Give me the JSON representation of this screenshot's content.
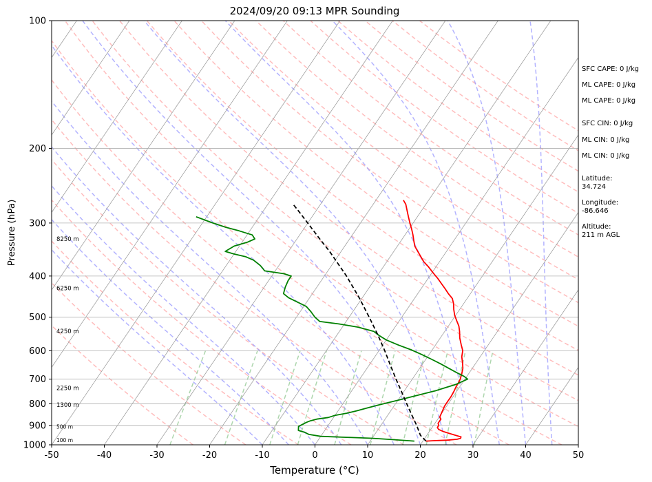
{
  "title": "2024/09/20 09:13 MPR Sounding",
  "chart_data": {
    "type": "line",
    "title": "2024/09/20 09:13 MPR Sounding",
    "xlabel": "Temperature (°C)",
    "ylabel": "Pressure (hPa)",
    "xlim": [
      -50,
      50
    ],
    "ylim": [
      1000,
      100
    ],
    "y_scale": "log",
    "grid": true,
    "x_ticks": [
      "-50",
      "-40",
      "-30",
      "-20",
      "-10",
      "0",
      "10",
      "20",
      "30",
      "40",
      "50"
    ],
    "y_ticks": [
      "100",
      "200",
      "300",
      "400",
      "500",
      "600",
      "700",
      "800",
      "900",
      "1000"
    ],
    "colors": {
      "temperature": "#ff0000",
      "dewpoint": "#008000",
      "parcel": "#000000",
      "isotherms": "#a0a0a0",
      "dry_adiabats": "#ff9999",
      "moist_adiabats": "#9999ff",
      "mixing_ratio": "#99cc99"
    },
    "series": [
      {
        "key": "temperature",
        "color": "#ff0000",
        "style": "solid",
        "points": [
          [
            20.6,
            980
          ],
          [
            22.0,
            978
          ],
          [
            24.6,
            975
          ],
          [
            26.3,
            970
          ],
          [
            26.8,
            965
          ],
          [
            26.7,
            958
          ],
          [
            25.5,
            950
          ],
          [
            24.0,
            940
          ],
          [
            22.6,
            930
          ],
          [
            21.5,
            920
          ],
          [
            21.0,
            910
          ],
          [
            21.0,
            900
          ],
          [
            20.6,
            890
          ],
          [
            20.6,
            880
          ],
          [
            20.6,
            870
          ],
          [
            20.1,
            860
          ],
          [
            20.0,
            850
          ],
          [
            19.8,
            830
          ],
          [
            19.6,
            810
          ],
          [
            19.6,
            790
          ],
          [
            19.6,
            770
          ],
          [
            19.5,
            750
          ],
          [
            19.3,
            730
          ],
          [
            19.2,
            710
          ],
          [
            19.1,
            700
          ],
          [
            18.7,
            680
          ],
          [
            18.2,
            660
          ],
          [
            17.4,
            640
          ],
          [
            16.5,
            620
          ],
          [
            15.9,
            600
          ],
          [
            14.8,
            580
          ],
          [
            13.7,
            560
          ],
          [
            12.8,
            540
          ],
          [
            12.0,
            525
          ],
          [
            10.9,
            510
          ],
          [
            9.8,
            495
          ],
          [
            8.9,
            480
          ],
          [
            8.1,
            465
          ],
          [
            7.2,
            452
          ],
          [
            5.8,
            440
          ],
          [
            4.5,
            428
          ],
          [
            3.1,
            416
          ],
          [
            1.8,
            405
          ],
          [
            0.2,
            393
          ],
          [
            -1.5,
            380
          ],
          [
            -3.0,
            370
          ],
          [
            -4.2,
            360
          ],
          [
            -5.7,
            348
          ],
          [
            -6.7,
            340
          ],
          [
            -7.6,
            330
          ],
          [
            -8.5,
            320
          ],
          [
            -9.5,
            310
          ],
          [
            -10.6,
            300
          ],
          [
            -11.7,
            290
          ],
          [
            -12.8,
            280
          ],
          [
            -13.8,
            271
          ],
          [
            -14.8,
            265
          ]
        ]
      },
      {
        "key": "dewpoint",
        "color": "#008000",
        "style": "solid",
        "points": [
          [
            18.4,
            980
          ],
          [
            14.0,
            972
          ],
          [
            10.0,
            965
          ],
          [
            5.0,
            960
          ],
          [
            0.0,
            955
          ],
          [
            -2.5,
            945
          ],
          [
            -3.5,
            935
          ],
          [
            -5.0,
            925
          ],
          [
            -5.5,
            905
          ],
          [
            -5.0,
            895
          ],
          [
            -4.5,
            885
          ],
          [
            -4.0,
            878
          ],
          [
            -3.0,
            870
          ],
          [
            -1.0,
            862
          ],
          [
            0.0,
            852
          ],
          [
            2.0,
            842
          ],
          [
            3.5,
            832
          ],
          [
            5.0,
            820
          ],
          [
            7.0,
            805
          ],
          [
            10.0,
            785
          ],
          [
            13.0,
            765
          ],
          [
            16.0,
            745
          ],
          [
            19.0,
            720
          ],
          [
            20.5,
            700
          ],
          [
            19.5,
            690
          ],
          [
            17.5,
            675
          ],
          [
            15.5,
            660
          ],
          [
            13.5,
            645
          ],
          [
            11.0,
            628
          ],
          [
            8.5,
            612
          ],
          [
            6.0,
            597
          ],
          [
            3.0,
            582
          ],
          [
            0.0,
            566
          ],
          [
            -2.0,
            552
          ],
          [
            -3.5,
            540
          ],
          [
            -7.0,
            528
          ],
          [
            -11.0,
            519
          ],
          [
            -15.0,
            512
          ],
          [
            -16.5,
            500
          ],
          [
            -18.0,
            485
          ],
          [
            -19.5,
            472
          ],
          [
            -21.5,
            462
          ],
          [
            -24.0,
            450
          ],
          [
            -25.5,
            440
          ],
          [
            -26.0,
            425
          ],
          [
            -26.3,
            410
          ],
          [
            -26.3,
            400
          ],
          [
            -28.0,
            395
          ],
          [
            -32.0,
            389
          ],
          [
            -33.5,
            378
          ],
          [
            -35.5,
            367
          ],
          [
            -37.5,
            360
          ],
          [
            -40.0,
            355
          ],
          [
            -42.0,
            350
          ],
          [
            -41.0,
            340
          ],
          [
            -39.0,
            333
          ],
          [
            -38.0,
            327
          ],
          [
            -39.0,
            320
          ],
          [
            -42.0,
            313
          ],
          [
            -45.0,
            307
          ],
          [
            -48.0,
            300
          ],
          [
            -50.0,
            295
          ],
          [
            -52.0,
            290
          ]
        ]
      },
      {
        "key": "parcel",
        "color": "#000000",
        "style": "dashed",
        "points": [
          [
            20.6,
            980
          ],
          [
            18.8,
            950
          ],
          [
            16.8,
            900
          ],
          [
            14.5,
            850
          ],
          [
            12.1,
            800
          ],
          [
            9.6,
            750
          ],
          [
            6.9,
            700
          ],
          [
            4.1,
            650
          ],
          [
            1.1,
            600
          ],
          [
            -2.3,
            550
          ],
          [
            -6.2,
            500
          ],
          [
            -10.6,
            450
          ],
          [
            -15.8,
            400
          ],
          [
            -22.2,
            350
          ],
          [
            -26.0,
            325
          ],
          [
            -30.0,
            300
          ],
          [
            -33.5,
            280
          ],
          [
            -35.0,
            272
          ]
        ]
      }
    ],
    "height_labels": [
      "8250 m",
      "6250 m",
      "4250 m",
      "2250 m",
      "1300 m",
      "500 m",
      "100 m"
    ],
    "height_label_pressures": [
      327,
      427,
      540,
      735,
      805,
      905,
      975
    ],
    "indices": [
      {
        "label": "SFC CAPE",
        "value": "0 J/kg"
      },
      {
        "label": "ML CAPE",
        "value": "0 J/kg"
      },
      {
        "label": "ML CAPE",
        "value": "0 J/kg"
      },
      {
        "label": "SFC CIN",
        "value": "0 J/kg"
      },
      {
        "label": "ML CIN",
        "value": "0 J/kg"
      },
      {
        "label": "ML CIN",
        "value": "0 J/kg"
      }
    ],
    "location": {
      "latitude_label": "Latitude:",
      "latitude": "34.724",
      "longitude_label": "Longitude:",
      "longitude": "-86.646",
      "altitude_label": "Altitude:",
      "altitude": "211 m AGL"
    }
  }
}
